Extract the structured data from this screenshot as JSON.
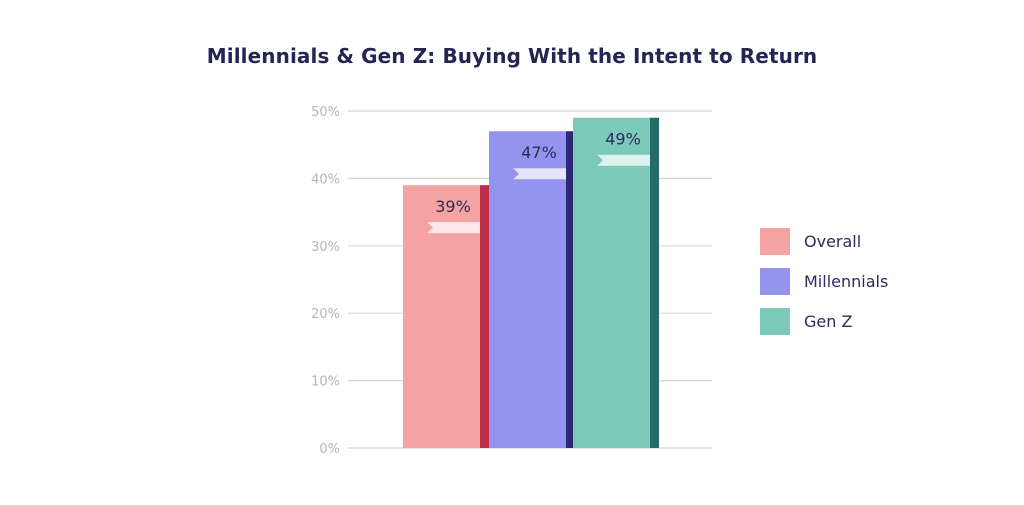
{
  "chart_data": {
    "type": "bar",
    "title": "Millennials & Gen Z: Buying With the Intent to Return",
    "categories": [
      "Overall",
      "Millennials",
      "Gen Z"
    ],
    "values": [
      39,
      47,
      49
    ],
    "data_labels": [
      "39%",
      "47%",
      "49%"
    ],
    "ylim": [
      0,
      50
    ],
    "yticks": [
      0,
      10,
      20,
      30,
      40,
      50
    ],
    "ytick_labels": [
      "0%",
      "10%",
      "20%",
      "30%",
      "40%",
      "50%"
    ],
    "xlabel": "",
    "ylabel": "",
    "grid": true,
    "legend_position": "right",
    "legend": [
      "Overall",
      "Millennials",
      "Gen Z"
    ],
    "colors": {
      "Overall": {
        "fill": "#f4a3a2",
        "edge": "#bb2f49"
      },
      "Millennials": {
        "fill": "#9494ee",
        "edge": "#2d2873"
      },
      "Gen Z": {
        "fill": "#7bcab9",
        "edge": "#246d66"
      }
    },
    "grid_color": "#d5d5d5",
    "title_color": "#242550",
    "label_color": "#2d2b5c"
  }
}
